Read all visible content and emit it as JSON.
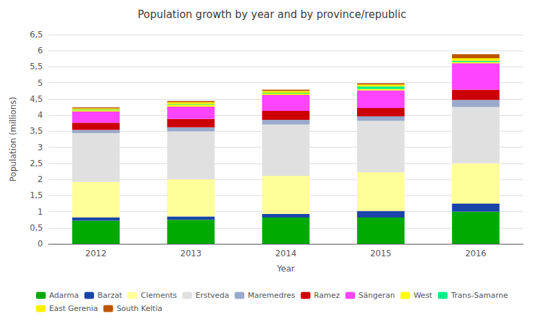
{
  "chart_data": {
    "type": "bar",
    "stacked": true,
    "title": "Population growth by year and by province/republic",
    "xlabel": "Year",
    "ylabel": "Population (millions)",
    "categories": [
      "2012",
      "2013",
      "2014",
      "2015",
      "2016"
    ],
    "ylim": [
      0,
      6.5
    ],
    "yticks": [
      0,
      {
        "value": 0.5,
        "label": "0,5"
      },
      1,
      {
        "value": 1.5,
        "label": "1,5"
      },
      2,
      {
        "value": 2.5,
        "label": "2,5"
      },
      3,
      {
        "value": 3.5,
        "label": "3,5"
      },
      4,
      {
        "value": 4.5,
        "label": "4,5"
      },
      5,
      {
        "value": 5.5,
        "label": "5,5"
      },
      6,
      {
        "value": 6.5,
        "label": "6,5"
      }
    ],
    "grid": true,
    "legend": "bottom",
    "series": [
      {
        "name": "Adarma",
        "color": "#00aa00",
        "values": [
          0.72,
          0.75,
          0.82,
          0.82,
          1.0
        ]
      },
      {
        "name": "Barzat",
        "color": "#1a44aa",
        "values": [
          0.1,
          0.1,
          0.11,
          0.2,
          0.25
        ]
      },
      {
        "name": "Clements",
        "color": "#ffff99",
        "values": [
          1.1,
          1.15,
          1.18,
          1.2,
          1.25
        ]
      },
      {
        "name": "Erstveda",
        "color": "#e0e0e0",
        "values": [
          1.52,
          1.5,
          1.6,
          1.6,
          1.75
        ]
      },
      {
        "name": "Maremedres",
        "color": "#99aacc",
        "values": [
          0.1,
          0.12,
          0.14,
          0.14,
          0.22
        ]
      },
      {
        "name": "Ramez",
        "color": "#cc0000",
        "values": [
          0.22,
          0.26,
          0.28,
          0.26,
          0.32
        ]
      },
      {
        "name": "Sängeran",
        "color": "#ff44ff",
        "values": [
          0.35,
          0.38,
          0.5,
          0.55,
          0.82
        ]
      },
      {
        "name": "West",
        "color": "#ffff00",
        "values": [
          0.04,
          0.06,
          0.04,
          0.04,
          0.04
        ]
      },
      {
        "name": "Trans-Samarne",
        "color": "#00ee88",
        "values": [
          0.02,
          0.02,
          0.02,
          0.08,
          0.04
        ]
      },
      {
        "name": "East Gerenia",
        "color": "#ffee00",
        "values": [
          0.04,
          0.06,
          0.06,
          0.06,
          0.08
        ]
      },
      {
        "name": "South Keltia",
        "color": "#bb5500",
        "values": [
          0.03,
          0.04,
          0.04,
          0.04,
          0.12
        ]
      }
    ]
  }
}
